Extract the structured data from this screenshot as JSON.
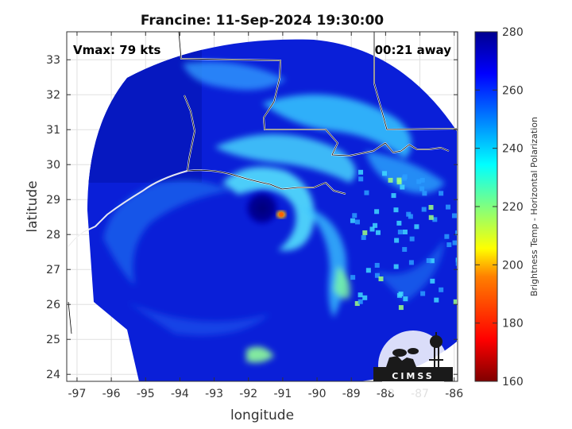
{
  "chart_data": {
    "type": "heatmap",
    "title": "Francine: 11-Sep-2024 19:30:00",
    "xlabel": "longitude",
    "ylabel": "latitude",
    "xlim": [
      -97.3,
      -85.9
    ],
    "ylim": [
      23.8,
      33.8
    ],
    "x_ticks": [
      "-97",
      "-96",
      "-95",
      "-94",
      "-93",
      "-92",
      "-91",
      "-90",
      "-89",
      "-88",
      "-87",
      "-86"
    ],
    "y_ticks": [
      "24",
      "25",
      "26",
      "27",
      "28",
      "29",
      "30",
      "31",
      "32",
      "33"
    ],
    "grid": true,
    "annotations": {
      "vmax": "Vmax: 79 kts",
      "away": "00:21 away"
    },
    "colorbar": {
      "label": "Brightness Temp - Horizontal Polarization",
      "range": [
        160,
        280
      ],
      "ticks": [
        "160",
        "180",
        "200",
        "220",
        "240",
        "260",
        "280"
      ],
      "colormap": [
        "#7f0000",
        "#ff0000",
        "#ff8000",
        "#ffff00",
        "#80ff80",
        "#00ffff",
        "#0080ff",
        "#0000ff",
        "#00008f"
      ]
    },
    "storm_center": {
      "lon": -91.5,
      "lat": 28.7
    },
    "swath_center": {
      "lon": -91.3,
      "lat": 28.9
    },
    "logo": "CIMSS"
  }
}
